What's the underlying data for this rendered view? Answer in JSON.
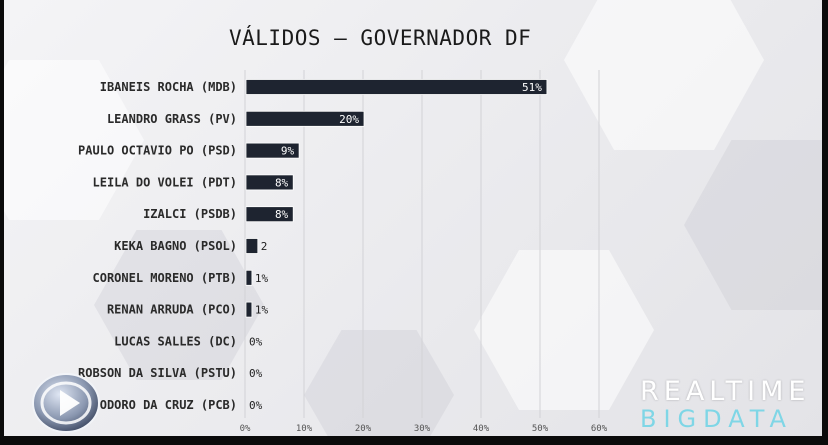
{
  "chart_data": {
    "type": "bar",
    "orientation": "horizontal",
    "title": "VÁLIDOS – GOVERNADOR DF",
    "categories": [
      "IBANEIS ROCHA (MDB)",
      "LEANDRO GRASS (PV)",
      "PAULO OCTAVIO PO (PSD)",
      "LEILA DO VOLEI (PDT)",
      "IZALCI (PSDB)",
      "KEKA BAGNO (PSOL)",
      "CORONEL MORENO (PTB)",
      "RENAN ARRUDA (PCO)",
      "LUCAS SALLES (DC)",
      "ROBSON DA SILVA (PSTU)",
      "TEODORO DA CRUZ (PCB)"
    ],
    "values": [
      51,
      20,
      9,
      8,
      8,
      2,
      1,
      1,
      0,
      0,
      0
    ],
    "data_labels": [
      "51%",
      "20%",
      "9%",
      "8%",
      "8%",
      "2",
      "1%",
      "1%",
      "0%",
      "0%",
      "0%"
    ],
    "xlim": [
      0,
      60
    ],
    "x_ticks": [
      0,
      10,
      20,
      30,
      40,
      50,
      60
    ],
    "x_tick_labels": [
      "0%",
      "10%",
      "20%",
      "30%",
      "40%",
      "50%",
      "60%"
    ],
    "grid": true,
    "colors": {
      "bar": "#1e2430",
      "label": "#2a2a2a",
      "grid": "#d2d2d6"
    }
  },
  "branding": {
    "realtime_top": "REALTIME",
    "realtime_bottom": "BIGDATA"
  }
}
